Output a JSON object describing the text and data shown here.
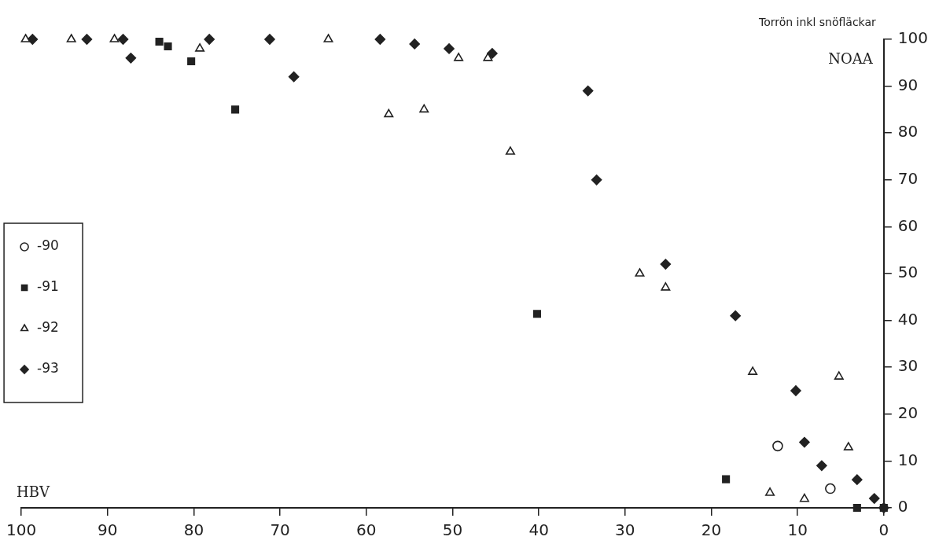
{
  "chart_data": {
    "type": "scatter",
    "title": "Torrön inkl snöfläckar",
    "xlabel": "HBV",
    "ylabel": "NOAA",
    "xlim": [
      100,
      0
    ],
    "xticks": [
      100,
      90,
      80,
      70,
      60,
      50,
      40,
      30,
      20,
      10,
      0
    ],
    "ylim": [
      0,
      100
    ],
    "yticks": [
      0,
      10,
      20,
      30,
      40,
      50,
      60,
      70,
      80,
      90,
      100
    ],
    "grid": false,
    "legend": "left",
    "series": [
      {
        "name": "-90",
        "color": "#222222",
        "marker": "circle",
        "x": [
          12.3,
          6.2
        ],
        "values": [
          13.2,
          4.1
        ]
      },
      {
        "name": "-91",
        "color": "#222222",
        "marker": "square",
        "x": [
          84,
          83,
          80.3,
          75.2,
          40.2,
          18.3,
          3.1,
          0
        ],
        "values": [
          99.5,
          98.5,
          95.3,
          85,
          41.4,
          6.1,
          0,
          0
        ]
      },
      {
        "name": "-92",
        "color": "#222222",
        "marker": "triangle",
        "x": [
          99.5,
          94.2,
          89.2,
          79.3,
          64.4,
          57.4,
          53.3,
          49.3,
          45.9,
          43.3,
          28.3,
          25.3,
          15.2,
          5.2,
          13.2,
          9.2,
          4.1
        ],
        "values": [
          100,
          100,
          100,
          98,
          100,
          84,
          85,
          96,
          96,
          76,
          50,
          47,
          29,
          28,
          3.2,
          1.9,
          12.9
        ]
      },
      {
        "name": "-93",
        "color": "#222222",
        "marker": "diamond",
        "x": [
          98.7,
          92.4,
          88.2,
          87.3,
          78.2,
          71.2,
          68.4,
          58.4,
          54.4,
          50.4,
          45.4,
          34.3,
          33.3,
          25.3,
          17.2,
          10.2,
          9.2,
          7.2,
          3.1,
          1.1,
          0
        ],
        "values": [
          100,
          100,
          100,
          96,
          100,
          100,
          92,
          100,
          99,
          98,
          97,
          89,
          70,
          52,
          41,
          25,
          14,
          9,
          6,
          2,
          0
        ]
      }
    ]
  }
}
